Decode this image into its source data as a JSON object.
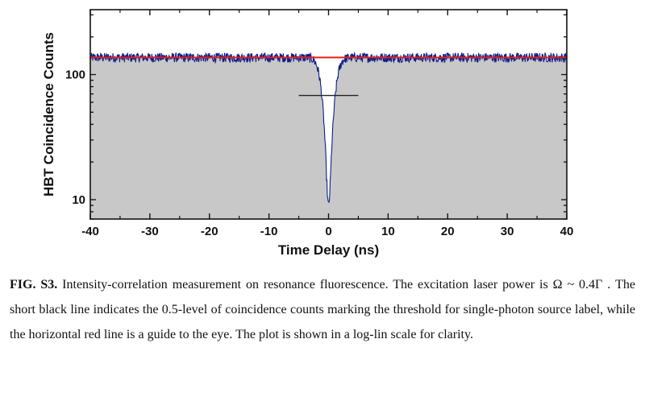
{
  "chart_data": {
    "type": "line",
    "xlabel": "Time Delay (ns)",
    "ylabel": "HBT Coincidence Counts",
    "xlim": [
      -40,
      40
    ],
    "ylim": [
      7,
      330
    ],
    "yscale": "log",
    "x_ticks": [
      -40,
      -30,
      -20,
      -10,
      0,
      10,
      20,
      30,
      40
    ],
    "x_tick_labels": [
      "-40",
      "-30",
      "-20",
      "-10",
      "0",
      "10",
      "20",
      "30",
      "40"
    ],
    "y_ticks": [
      10,
      100
    ],
    "y_tick_labels": [
      "10",
      "100"
    ],
    "grid": false,
    "legend": false,
    "series": [
      {
        "role": "measured coincidence histogram",
        "style": "noisy line with gray fill below",
        "color": "#0d1f8a",
        "fill_color": "#c8c8c8",
        "baseline": 137,
        "noise": 12,
        "dip": {
          "center": 0,
          "min": 9,
          "halfwidth_at_half_level": 1.2
        }
      }
    ],
    "reference_lines": [
      {
        "role": "guide to the eye",
        "orientation": "horizontal",
        "y": 137,
        "x_range": [
          -40,
          40
        ],
        "color": "#e0201e"
      },
      {
        "role": "0.5-level threshold",
        "orientation": "horizontal",
        "y": 68,
        "x_range": [
          -5,
          5
        ],
        "color": "#222222"
      }
    ]
  },
  "caption": {
    "label": "FIG. S3.",
    "text": " Intensity-correlation measurement on resonance fluorescence. The excitation laser power is Ω ~ 0.4Γ . The short black line indicates the 0.5-level of coincidence counts marking the threshold for single-photon source label, while the horizontal red line is a guide to the eye. The plot is shown in a log-lin scale for clarity."
  }
}
